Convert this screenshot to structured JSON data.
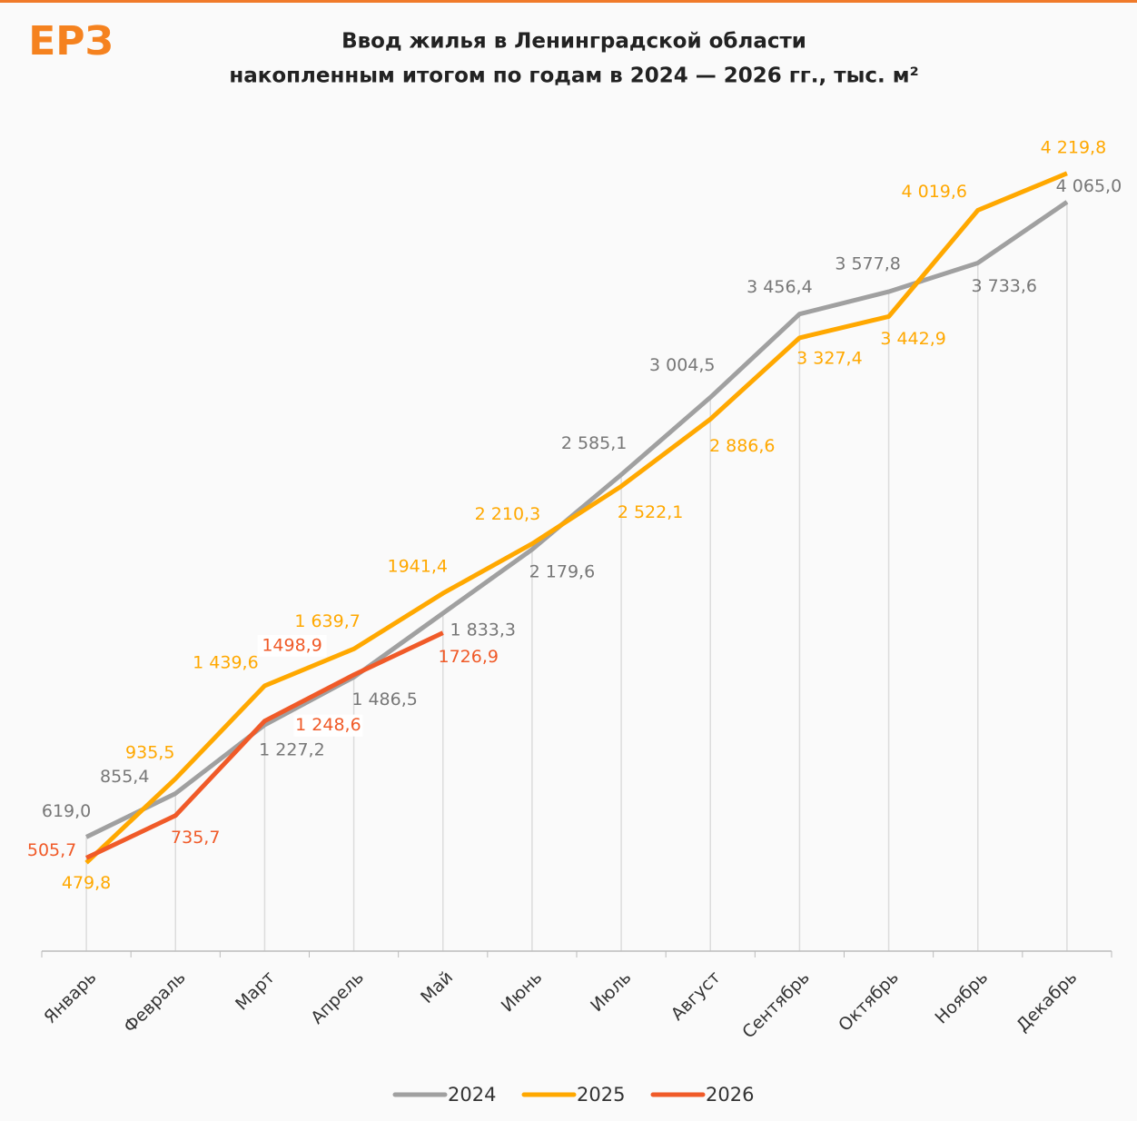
{
  "chart_data": {
    "type": "line",
    "logo": "ЕРЗ",
    "title": [
      "Ввод жилья  в Ленинградской  области",
      "накопленным  итогом  по годам в 2024  — 2026 гг., тыс. м²"
    ],
    "categories": [
      "Январь",
      "Февраль",
      "Март",
      "Апрель",
      "Май",
      "Июнь",
      "Июль",
      "Август",
      "Сентябрь",
      "Октябрь",
      "Ноябрь",
      "Декабрь"
    ],
    "ylim": [
      0,
      4500
    ],
    "legend": "bottom",
    "series": [
      {
        "name": "2024",
        "color": "#a0a0a0",
        "values": [
          619.0,
          855.4,
          1227.2,
          1486.5,
          1833.3,
          2179.6,
          2585.1,
          3004.5,
          3456.4,
          3577.8,
          3733.6,
          4065.0
        ],
        "value_labels": [
          "619,0",
          "855,4",
          "1 227,2",
          "1 486,5",
          "1 833,3",
          "2 179,6",
          "2 585,1",
          "3 004,5",
          "3 456,4",
          "3 577,8",
          "3 733,6",
          "4 065,0"
        ]
      },
      {
        "name": "2025",
        "color": "#ffa800",
        "values": [
          479.8,
          935.5,
          1439.6,
          1639.7,
          1941.4,
          2210.3,
          2522.1,
          2886.6,
          3327.4,
          3442.9,
          4019.6,
          4219.8
        ],
        "value_labels": [
          "479,8",
          "935,5",
          "1 439,6",
          "1 639,7",
          "1941,4",
          "2 210,3",
          "2 522,1",
          "2 886,6",
          "3 327,4",
          "3 442,9",
          "4 019,6",
          "4 219,8"
        ]
      },
      {
        "name": "2026",
        "color": "#f05a28",
        "values": [
          505.7,
          735.7,
          1248.6,
          1498.9,
          1726.9,
          null,
          null,
          null,
          null,
          null,
          null,
          null
        ],
        "value_labels": [
          "505,7",
          "735,7",
          "1 248,6",
          "1498,9",
          "1726,9",
          null,
          null,
          null,
          null,
          null,
          null,
          null
        ]
      }
    ]
  }
}
